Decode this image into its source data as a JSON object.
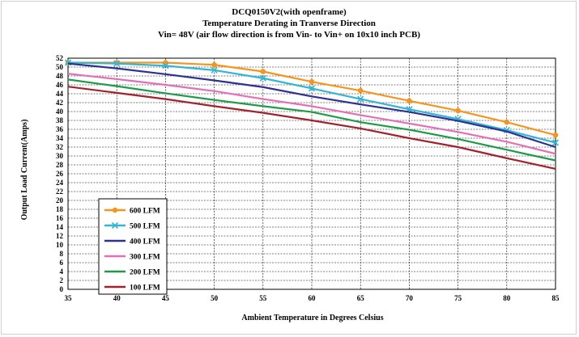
{
  "chart_data": {
    "type": "line",
    "title": "DCQ0150V2(with openframe)",
    "subtitle": "Temperature Derating in Tranverse Direction",
    "subtitle2": "Vin= 48V (air flow direction is from Vin- to Vin+ on 10x10 inch PCB)",
    "xlabel": "Ambient Temperature in Degrees Celsius",
    "ylabel": "Output  Load Current(Amps)",
    "xlim": [
      35,
      85
    ],
    "ylim": [
      0,
      52
    ],
    "xticks": [
      35,
      40,
      45,
      50,
      55,
      60,
      65,
      70,
      75,
      80,
      85
    ],
    "yticks": [
      0,
      2,
      4,
      6,
      8,
      10,
      12,
      14,
      16,
      18,
      20,
      22,
      24,
      26,
      28,
      30,
      32,
      34,
      36,
      38,
      40,
      42,
      44,
      46,
      48,
      50,
      52
    ],
    "grid": true,
    "legend_position": "bottom-left",
    "x": [
      35,
      40,
      45,
      50,
      55,
      60,
      65,
      70,
      75,
      80,
      85
    ],
    "series": [
      {
        "name": "600 LFM",
        "color": "#f7941d",
        "marker": "circle",
        "values": [
          51,
          51,
          51,
          50.5,
          49,
          46.7,
          44.7,
          42.4,
          40.2,
          37.6,
          34.7
        ]
      },
      {
        "name": "500 LFM",
        "color": "#33b5d3",
        "marker": "x",
        "values": [
          51,
          50.8,
          50.3,
          49.3,
          47.5,
          45.2,
          42.8,
          40.5,
          38.3,
          35.8,
          33
        ]
      },
      {
        "name": "400 LFM",
        "color": "#2e3192",
        "marker": "none",
        "values": [
          50.8,
          49.7,
          48.4,
          47,
          45.5,
          43.4,
          41.6,
          39.9,
          37.9,
          35.5,
          32
        ]
      },
      {
        "name": "300 LFM",
        "color": "#e36fb8",
        "marker": "none",
        "values": [
          48.5,
          47.3,
          46,
          44.6,
          42.8,
          41.2,
          39.2,
          37.3,
          35.4,
          33.2,
          30.5
        ]
      },
      {
        "name": "200 LFM",
        "color": "#1f9a48",
        "marker": "none",
        "values": [
          47.2,
          45.7,
          44.1,
          42.6,
          41.2,
          39.9,
          37.6,
          35.9,
          33.8,
          31.4,
          29
        ]
      },
      {
        "name": "100 LFM",
        "color": "#a2222c",
        "marker": "none",
        "values": [
          45.6,
          44.2,
          42.8,
          41.2,
          39.7,
          38,
          36.2,
          34,
          32,
          29.5,
          27.1
        ]
      }
    ]
  }
}
